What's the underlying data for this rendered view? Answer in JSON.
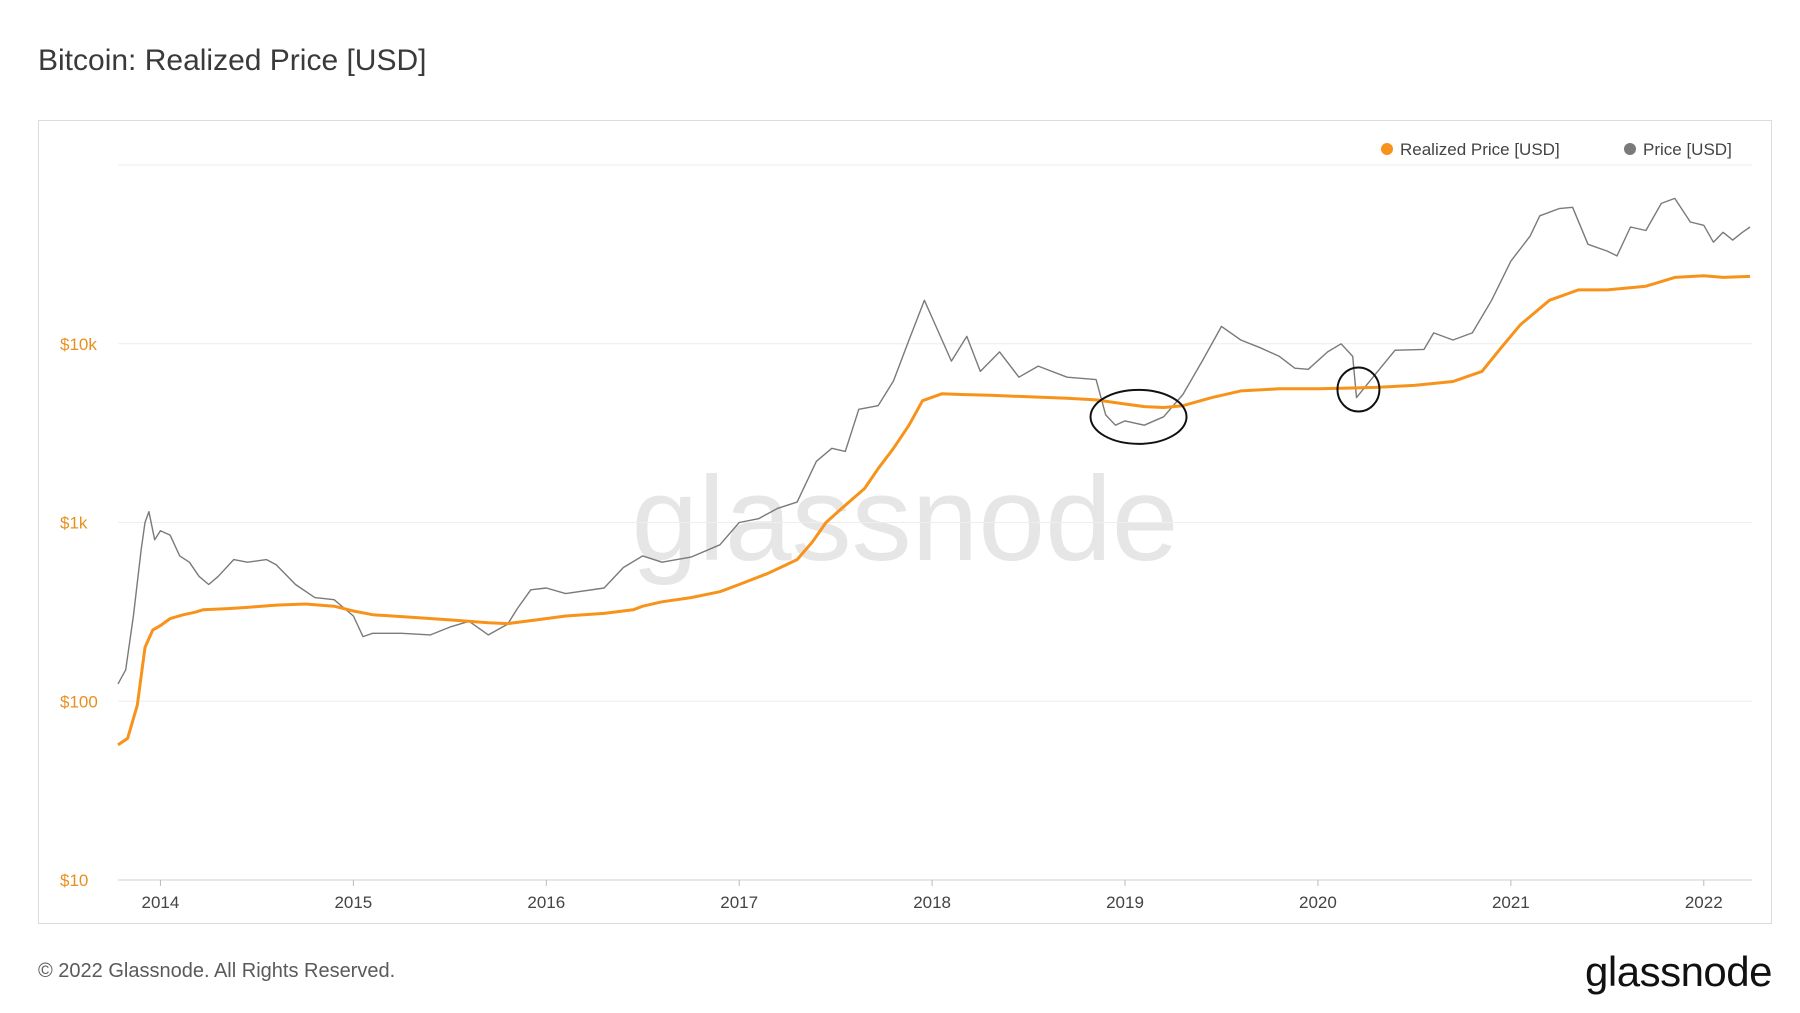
{
  "page": {
    "title": "Bitcoin: Realized Price [USD]",
    "footer": "© 2022 Glassnode. All Rights Reserved.",
    "brand": "glassnode",
    "watermark": "glassnode"
  },
  "chart_data": {
    "type": "line",
    "title": "Bitcoin: Realized Price [USD]",
    "xlabel": "",
    "ylabel": "",
    "y_scale": "log",
    "ylim": [
      10,
      100000
    ],
    "xlim": [
      2013.78,
      2022.25
    ],
    "grid": true,
    "legend_position": "top-right",
    "y_ticks": [
      {
        "value": 10,
        "label": "$10"
      },
      {
        "value": 100,
        "label": "$100"
      },
      {
        "value": 1000,
        "label": "$1k"
      },
      {
        "value": 10000,
        "label": "$10k"
      }
    ],
    "x_ticks": [
      {
        "value": 2014,
        "label": "2014"
      },
      {
        "value": 2015,
        "label": "2015"
      },
      {
        "value": 2016,
        "label": "2016"
      },
      {
        "value": 2017,
        "label": "2017"
      },
      {
        "value": 2018,
        "label": "2018"
      },
      {
        "value": 2019,
        "label": "2019"
      },
      {
        "value": 2020,
        "label": "2020"
      },
      {
        "value": 2021,
        "label": "2021"
      },
      {
        "value": 2022,
        "label": "2022"
      }
    ],
    "series": [
      {
        "name": "Realized Price [USD]",
        "color": "#f7931a",
        "points": [
          [
            2013.78,
            57
          ],
          [
            2013.83,
            62
          ],
          [
            2013.88,
            95
          ],
          [
            2013.92,
            200
          ],
          [
            2013.96,
            250
          ],
          [
            2014.0,
            265
          ],
          [
            2014.05,
            290
          ],
          [
            2014.12,
            305
          ],
          [
            2014.18,
            315
          ],
          [
            2014.22,
            325
          ],
          [
            2014.35,
            330
          ],
          [
            2014.45,
            335
          ],
          [
            2014.6,
            345
          ],
          [
            2014.75,
            350
          ],
          [
            2014.9,
            340
          ],
          [
            2015.0,
            320
          ],
          [
            2015.1,
            305
          ],
          [
            2015.3,
            295
          ],
          [
            2015.5,
            285
          ],
          [
            2015.7,
            275
          ],
          [
            2015.8,
            272
          ],
          [
            2015.95,
            285
          ],
          [
            2016.1,
            300
          ],
          [
            2016.3,
            310
          ],
          [
            2016.45,
            325
          ],
          [
            2016.5,
            340
          ],
          [
            2016.6,
            360
          ],
          [
            2016.75,
            380
          ],
          [
            2016.9,
            410
          ],
          [
            2017.0,
            450
          ],
          [
            2017.15,
            520
          ],
          [
            2017.3,
            620
          ],
          [
            2017.38,
            780
          ],
          [
            2017.45,
            1000
          ],
          [
            2017.55,
            1250
          ],
          [
            2017.65,
            1550
          ],
          [
            2017.72,
            2000
          ],
          [
            2017.8,
            2600
          ],
          [
            2017.88,
            3500
          ],
          [
            2017.95,
            4800
          ],
          [
            2018.05,
            5250
          ],
          [
            2018.15,
            5200
          ],
          [
            2018.3,
            5150
          ],
          [
            2018.5,
            5050
          ],
          [
            2018.7,
            4950
          ],
          [
            2018.85,
            4850
          ],
          [
            2019.0,
            4600
          ],
          [
            2019.1,
            4450
          ],
          [
            2019.2,
            4400
          ],
          [
            2019.3,
            4500
          ],
          [
            2019.45,
            5000
          ],
          [
            2019.6,
            5450
          ],
          [
            2019.8,
            5600
          ],
          [
            2020.0,
            5600
          ],
          [
            2020.15,
            5650
          ],
          [
            2020.3,
            5700
          ],
          [
            2020.5,
            5850
          ],
          [
            2020.7,
            6150
          ],
          [
            2020.85,
            7000
          ],
          [
            2020.95,
            9500
          ],
          [
            2021.05,
            12800
          ],
          [
            2021.2,
            17500
          ],
          [
            2021.35,
            20000
          ],
          [
            2021.5,
            20000
          ],
          [
            2021.7,
            21000
          ],
          [
            2021.85,
            23500
          ],
          [
            2022.0,
            24000
          ],
          [
            2022.1,
            23500
          ],
          [
            2022.24,
            23800
          ]
        ]
      },
      {
        "name": "Price [USD]",
        "color": "#7a7a7a",
        "points": [
          [
            2013.78,
            125
          ],
          [
            2013.82,
            150
          ],
          [
            2013.86,
            300
          ],
          [
            2013.9,
            700
          ],
          [
            2013.92,
            1000
          ],
          [
            2013.94,
            1150
          ],
          [
            2013.97,
            800
          ],
          [
            2014.0,
            900
          ],
          [
            2014.05,
            850
          ],
          [
            2014.1,
            650
          ],
          [
            2014.15,
            600
          ],
          [
            2014.2,
            500
          ],
          [
            2014.25,
            450
          ],
          [
            2014.3,
            500
          ],
          [
            2014.38,
            620
          ],
          [
            2014.45,
            600
          ],
          [
            2014.55,
            620
          ],
          [
            2014.6,
            580
          ],
          [
            2014.7,
            450
          ],
          [
            2014.8,
            380
          ],
          [
            2014.9,
            370
          ],
          [
            2015.0,
            300
          ],
          [
            2015.05,
            230
          ],
          [
            2015.1,
            240
          ],
          [
            2015.25,
            240
          ],
          [
            2015.4,
            235
          ],
          [
            2015.5,
            260
          ],
          [
            2015.6,
            280
          ],
          [
            2015.7,
            235
          ],
          [
            2015.8,
            270
          ],
          [
            2015.85,
            330
          ],
          [
            2015.92,
            420
          ],
          [
            2016.0,
            430
          ],
          [
            2016.1,
            400
          ],
          [
            2016.3,
            430
          ],
          [
            2016.4,
            560
          ],
          [
            2016.5,
            650
          ],
          [
            2016.6,
            600
          ],
          [
            2016.75,
            640
          ],
          [
            2016.9,
            750
          ],
          [
            2017.0,
            1000
          ],
          [
            2017.1,
            1050
          ],
          [
            2017.2,
            1200
          ],
          [
            2017.3,
            1300
          ],
          [
            2017.4,
            2200
          ],
          [
            2017.48,
            2600
          ],
          [
            2017.55,
            2500
          ],
          [
            2017.62,
            4300
          ],
          [
            2017.72,
            4500
          ],
          [
            2017.8,
            6200
          ],
          [
            2017.88,
            10500
          ],
          [
            2017.96,
            17500
          ],
          [
            2018.0,
            14000
          ],
          [
            2018.1,
            8000
          ],
          [
            2018.18,
            11000
          ],
          [
            2018.25,
            7000
          ],
          [
            2018.35,
            9000
          ],
          [
            2018.45,
            6500
          ],
          [
            2018.55,
            7500
          ],
          [
            2018.7,
            6500
          ],
          [
            2018.85,
            6300
          ],
          [
            2018.9,
            4000
          ],
          [
            2018.95,
            3500
          ],
          [
            2019.0,
            3700
          ],
          [
            2019.1,
            3500
          ],
          [
            2019.2,
            3900
          ],
          [
            2019.3,
            5200
          ],
          [
            2019.4,
            8000
          ],
          [
            2019.5,
            12500
          ],
          [
            2019.6,
            10500
          ],
          [
            2019.7,
            9500
          ],
          [
            2019.8,
            8500
          ],
          [
            2019.88,
            7300
          ],
          [
            2019.95,
            7200
          ],
          [
            2020.05,
            9000
          ],
          [
            2020.12,
            10000
          ],
          [
            2020.18,
            8500
          ],
          [
            2020.2,
            5000
          ],
          [
            2020.3,
            6800
          ],
          [
            2020.4,
            9200
          ],
          [
            2020.55,
            9300
          ],
          [
            2020.6,
            11500
          ],
          [
            2020.7,
            10500
          ],
          [
            2020.8,
            11500
          ],
          [
            2020.9,
            17500
          ],
          [
            2021.0,
            29000
          ],
          [
            2021.1,
            40000
          ],
          [
            2021.15,
            52000
          ],
          [
            2021.25,
            57000
          ],
          [
            2021.32,
            58000
          ],
          [
            2021.4,
            36000
          ],
          [
            2021.5,
            33000
          ],
          [
            2021.55,
            31000
          ],
          [
            2021.62,
            45000
          ],
          [
            2021.7,
            43000
          ],
          [
            2021.78,
            61000
          ],
          [
            2021.85,
            65000
          ],
          [
            2021.93,
            48000
          ],
          [
            2022.0,
            46000
          ],
          [
            2022.05,
            37000
          ],
          [
            2022.1,
            42000
          ],
          [
            2022.15,
            38000
          ],
          [
            2022.2,
            42000
          ],
          [
            2022.24,
            45000
          ]
        ]
      }
    ],
    "annotations": [
      {
        "type": "ellipse",
        "center": [
          2019.07,
          3900
        ]
      },
      {
        "type": "ellipse",
        "center": [
          2020.21,
          5550
        ]
      }
    ]
  }
}
